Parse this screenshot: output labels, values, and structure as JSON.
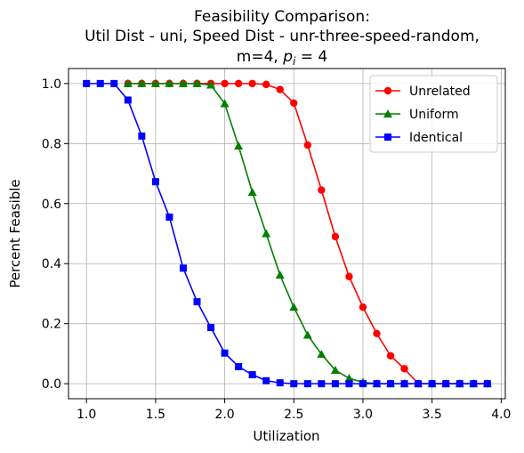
{
  "chart_data": {
    "type": "line",
    "title_lines": [
      "Feasibility Comparison:",
      "Util Dist - uni, Speed Dist - unr-three-speed-random,"
    ],
    "title_math_line": {
      "prefix": "m=4, ",
      "var": "p",
      "sub": "i",
      "suffix": " = 4"
    },
    "xlabel": "Utilization",
    "ylabel": "Percent Feasible",
    "xlim": [
      0.87,
      4.03
    ],
    "ylim": [
      -0.05,
      1.05
    ],
    "xticks": [
      1.0,
      1.5,
      2.0,
      2.5,
      3.0,
      3.5,
      4.0
    ],
    "xtick_labels": [
      "1.0",
      "1.5",
      "2.0",
      "2.5",
      "3.0",
      "3.5",
      "4.0"
    ],
    "yticks": [
      0.0,
      0.2,
      0.4,
      0.6,
      0.8,
      1.0
    ],
    "ytick_labels": [
      "0.0",
      "0.2",
      "0.4",
      "0.6",
      "0.8",
      "1.0"
    ],
    "grid": true,
    "legend_position": "top-right",
    "series": [
      {
        "name": "Unrelated",
        "color": "#ff0000",
        "marker": "circle",
        "x": [
          1.3,
          1.4,
          1.5,
          1.6,
          1.7,
          1.8,
          1.9,
          2.0,
          2.1,
          2.2,
          2.3,
          2.4,
          2.5,
          2.6,
          2.7,
          2.8,
          2.9,
          3.0,
          3.1,
          3.2,
          3.3,
          3.4,
          3.5,
          3.6,
          3.7,
          3.8,
          3.9
        ],
        "y": [
          1.0,
          1.0,
          1.0,
          1.0,
          1.0,
          1.0,
          1.0,
          1.0,
          1.0,
          1.0,
          0.997,
          0.98,
          0.935,
          0.795,
          0.645,
          0.49,
          0.357,
          0.255,
          0.167,
          0.093,
          0.05,
          0.0,
          0.0,
          0.0,
          0.0,
          0.0,
          0.0
        ]
      },
      {
        "name": "Uniform",
        "color": "#008000",
        "marker": "triangle",
        "x": [
          1.3,
          1.4,
          1.5,
          1.6,
          1.7,
          1.8,
          1.9,
          2.0,
          2.1,
          2.2,
          2.3,
          2.4,
          2.5,
          2.6,
          2.7,
          2.8,
          2.9,
          3.0,
          3.1,
          3.2,
          3.3,
          3.4,
          3.5,
          3.6,
          3.7,
          3.8,
          3.9
        ],
        "y": [
          1.0,
          1.0,
          1.0,
          1.0,
          1.0,
          1.0,
          0.995,
          0.933,
          0.792,
          0.638,
          0.5,
          0.362,
          0.255,
          0.162,
          0.098,
          0.045,
          0.018,
          0.005,
          0.0,
          0.0,
          0.0,
          0.0,
          0.0,
          0.0,
          0.0,
          0.0,
          0.0
        ]
      },
      {
        "name": "Identical",
        "color": "#0000ff",
        "marker": "square",
        "x": [
          1.0,
          1.1,
          1.2,
          1.3,
          1.4,
          1.5,
          1.6,
          1.7,
          1.8,
          1.9,
          2.0,
          2.1,
          2.2,
          2.3,
          2.4,
          2.5,
          2.6,
          2.7,
          2.8,
          2.9,
          3.0,
          3.1,
          3.2,
          3.3,
          3.4,
          3.5,
          3.6,
          3.7,
          3.8,
          3.9
        ],
        "y": [
          1.0,
          1.0,
          1.0,
          0.945,
          0.825,
          0.673,
          0.555,
          0.385,
          0.273,
          0.187,
          0.102,
          0.057,
          0.03,
          0.01,
          0.003,
          0.0,
          0.0,
          0.0,
          0.0,
          0.0,
          0.0,
          0.0,
          0.0,
          0.0,
          0.0,
          0.0,
          0.0,
          0.0,
          0.0,
          0.0
        ]
      }
    ]
  }
}
